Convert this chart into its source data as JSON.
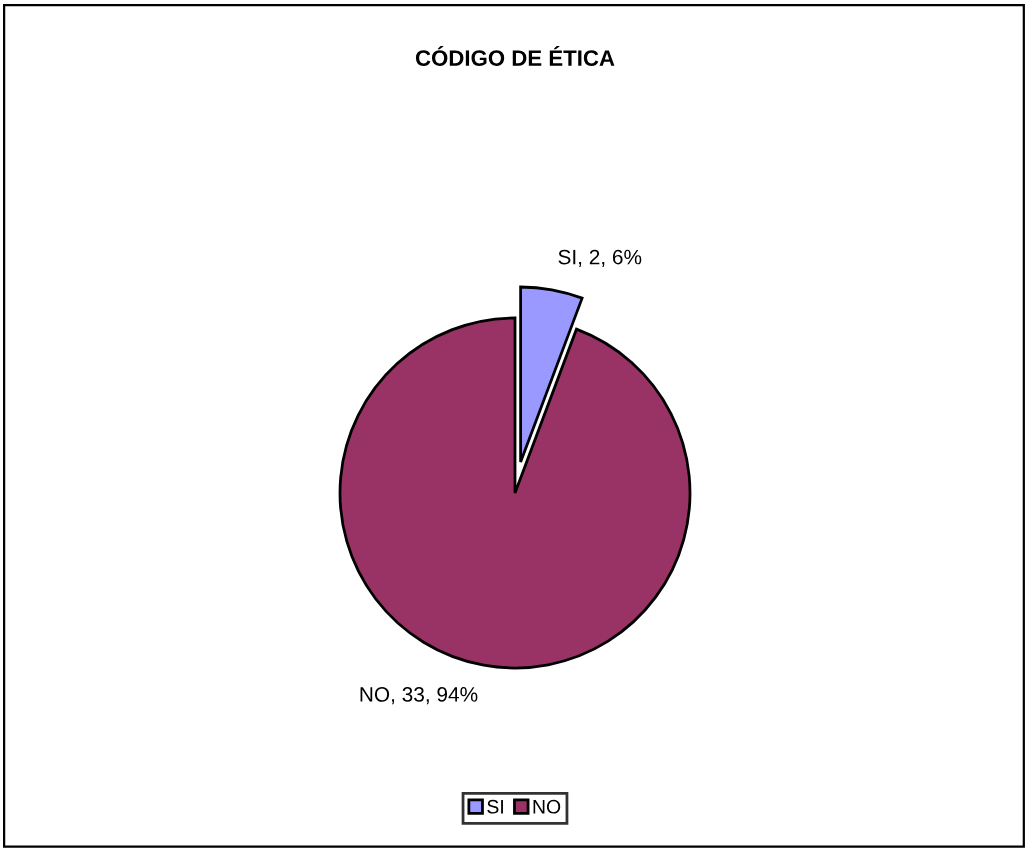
{
  "chart_data": {
    "type": "pie",
    "title": "CÓDIGO DE ÉTICA",
    "categories": [
      "SI",
      "NO"
    ],
    "values": [
      2,
      33
    ],
    "value_labels": [
      "SI, 2, 6%",
      "NO, 33, 94%"
    ],
    "colors": [
      "#9999ff",
      "#993366"
    ],
    "legend": "bottom"
  }
}
